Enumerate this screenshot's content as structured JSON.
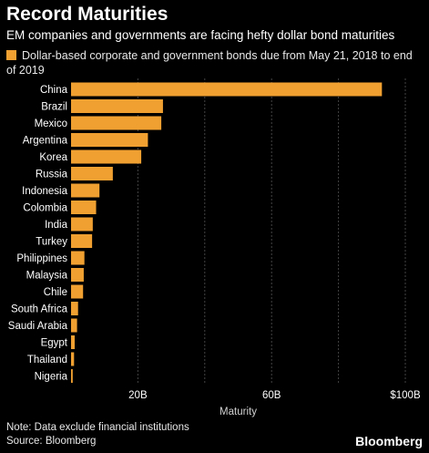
{
  "title": "Record Maturities",
  "subtitle": "EM companies and governments are facing hefty dollar bond maturities",
  "legend_label": "Dollar-based corporate and government bonds due from May 21, 2018 to end of 2019",
  "note": "Note: Data exclude financial institutions",
  "source": "Source: Bloomberg",
  "brand": "Bloomberg",
  "colors": {
    "bar": "#f0a030",
    "background": "#000000",
    "grid": "#444444",
    "text": "#ffffff"
  },
  "chart_data": {
    "type": "bar",
    "orientation": "horizontal",
    "categories": [
      "China",
      "Brazil",
      "Mexico",
      "Argentina",
      "Korea",
      "Russia",
      "Indonesia",
      "Colombia",
      "India",
      "Turkey",
      "Philippines",
      "Malaysia",
      "Chile",
      "South Africa",
      "Saudi Arabia",
      "Egypt",
      "Thailand",
      "Nigeria"
    ],
    "values": [
      93,
      27.5,
      27,
      23,
      21,
      12.5,
      8.5,
      7.5,
      6.5,
      6.3,
      4,
      3.8,
      3.6,
      2.1,
      1.8,
      1.1,
      0.9,
      0.5
    ],
    "xlabel": "Maturity",
    "xlim": [
      0,
      100
    ],
    "xticks": [
      {
        "value": 20,
        "label": "20B"
      },
      {
        "value": 60,
        "label": "60B"
      },
      {
        "value": 100,
        "label": "$100B"
      }
    ],
    "grid_values": [
      20,
      40,
      60,
      80,
      100
    ],
    "grid": true,
    "legend_position": "top"
  }
}
